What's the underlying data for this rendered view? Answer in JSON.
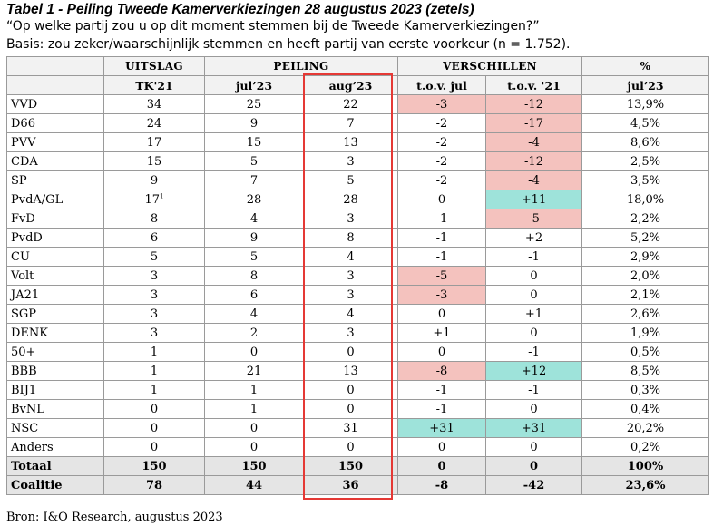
{
  "title": "Tabel 1 - Peiling Tweede Kamerverkiezingen 28 augustus 2023 (zetels)",
  "question": "“Op welke partij zou u op dit moment stemmen bij de Tweede Kamerverkiezingen?”",
  "basis": "Basis: zou zeker/waarschijnlijk stemmen en heeft partij van eerste voorkeur (n = 1.752).",
  "headers": {
    "group": [
      "",
      "UITSLAG",
      "PEILING",
      "VERSCHILLEN",
      "%"
    ],
    "sub": [
      "",
      "TK'21",
      "jul’23",
      "aug’23",
      "t.o.v. jul",
      "t.o.v. '21",
      "jul’23"
    ]
  },
  "rows": [
    {
      "party": "VVD",
      "tk21": "34",
      "jul": "25",
      "aug": "22",
      "diff_jul": "-3",
      "diff_21": "-12",
      "pct": "13,9%",
      "shade_jul": "neg",
      "shade_21": "neg"
    },
    {
      "party": "D66",
      "tk21": "24",
      "jul": "9",
      "aug": "7",
      "diff_jul": "-2",
      "diff_21": "-17",
      "pct": "4,5%",
      "shade_jul": "",
      "shade_21": "neg"
    },
    {
      "party": "PVV",
      "tk21": "17",
      "jul": "15",
      "aug": "13",
      "diff_jul": "-2",
      "diff_21": "-4",
      "pct": "8,6%",
      "shade_jul": "",
      "shade_21": "neg"
    },
    {
      "party": "CDA",
      "tk21": "15",
      "jul": "5",
      "aug": "3",
      "diff_jul": "-2",
      "diff_21": "-12",
      "pct": "2,5%",
      "shade_jul": "",
      "shade_21": "neg"
    },
    {
      "party": "SP",
      "tk21": "9",
      "jul": "7",
      "aug": "5",
      "diff_jul": "-2",
      "diff_21": "-4",
      "pct": "3,5%",
      "shade_jul": "",
      "shade_21": "neg"
    },
    {
      "party": "PvdA/GL",
      "tk21": "17",
      "tk21_sup": "1",
      "jul": "28",
      "aug": "28",
      "diff_jul": "0",
      "diff_21": "+11",
      "pct": "18,0%",
      "shade_jul": "",
      "shade_21": "pos"
    },
    {
      "party": "FvD",
      "tk21": "8",
      "jul": "4",
      "aug": "3",
      "diff_jul": "-1",
      "diff_21": "-5",
      "pct": "2,2%",
      "shade_jul": "",
      "shade_21": "neg"
    },
    {
      "party": "PvdD",
      "tk21": "6",
      "jul": "9",
      "aug": "8",
      "diff_jul": "-1",
      "diff_21": "+2",
      "pct": "5,2%",
      "shade_jul": "",
      "shade_21": ""
    },
    {
      "party": "CU",
      "tk21": "5",
      "jul": "5",
      "aug": "4",
      "diff_jul": "-1",
      "diff_21": "-1",
      "pct": "2,9%",
      "shade_jul": "",
      "shade_21": ""
    },
    {
      "party": "Volt",
      "tk21": "3",
      "jul": "8",
      "aug": "3",
      "diff_jul": "-5",
      "diff_21": "0",
      "pct": "2,0%",
      "shade_jul": "neg",
      "shade_21": ""
    },
    {
      "party": "JA21",
      "tk21": "3",
      "jul": "6",
      "aug": "3",
      "diff_jul": "-3",
      "diff_21": "0",
      "pct": "2,1%",
      "shade_jul": "neg",
      "shade_21": ""
    },
    {
      "party": "SGP",
      "tk21": "3",
      "jul": "4",
      "aug": "4",
      "diff_jul": "0",
      "diff_21": "+1",
      "pct": "2,6%",
      "shade_jul": "",
      "shade_21": ""
    },
    {
      "party": "DENK",
      "tk21": "3",
      "jul": "2",
      "aug": "3",
      "diff_jul": "+1",
      "diff_21": "0",
      "pct": "1,9%",
      "shade_jul": "",
      "shade_21": ""
    },
    {
      "party": "50+",
      "tk21": "1",
      "jul": "0",
      "aug": "0",
      "diff_jul": "0",
      "diff_21": "-1",
      "pct": "0,5%",
      "shade_jul": "",
      "shade_21": ""
    },
    {
      "party": "BBB",
      "tk21": "1",
      "jul": "21",
      "aug": "13",
      "diff_jul": "-8",
      "diff_21": "+12",
      "pct": "8,5%",
      "shade_jul": "neg",
      "shade_21": "pos"
    },
    {
      "party": "BIJ1",
      "tk21": "1",
      "jul": "1",
      "aug": "0",
      "diff_jul": "-1",
      "diff_21": "-1",
      "pct": "0,3%",
      "shade_jul": "",
      "shade_21": ""
    },
    {
      "party": "BvNL",
      "tk21": "0",
      "jul": "1",
      "aug": "0",
      "diff_jul": "-1",
      "diff_21": "0",
      "pct": "0,4%",
      "shade_jul": "",
      "shade_21": ""
    },
    {
      "party": "NSC",
      "tk21": "0",
      "jul": "0",
      "aug": "31",
      "diff_jul": "+31",
      "diff_21": "+31",
      "pct": "20,2%",
      "shade_jul": "pos",
      "shade_21": "pos"
    },
    {
      "party": "Anders",
      "tk21": "0",
      "jul": "0",
      "aug": "0",
      "diff_jul": "0",
      "diff_21": "0",
      "pct": "0,2%",
      "shade_jul": "",
      "shade_21": ""
    }
  ],
  "totals": [
    {
      "party": "Totaal",
      "tk21": "150",
      "jul": "150",
      "aug": "150",
      "diff_jul": "0",
      "diff_21": "0",
      "pct": "100%"
    },
    {
      "party": "Coalitie",
      "tk21": "78",
      "jul": "44",
      "aug": "36",
      "diff_jul": "-8",
      "diff_21": "-42",
      "pct": "23,6%"
    }
  ],
  "source": "Bron: I&O Research, augustus 2023",
  "colors": {
    "negative": "#f4c2be",
    "positive": "#9ee3da",
    "highlight_box": "#e53935",
    "header_bg": "#f2f2f2",
    "total_bg": "#e5e5e5"
  }
}
